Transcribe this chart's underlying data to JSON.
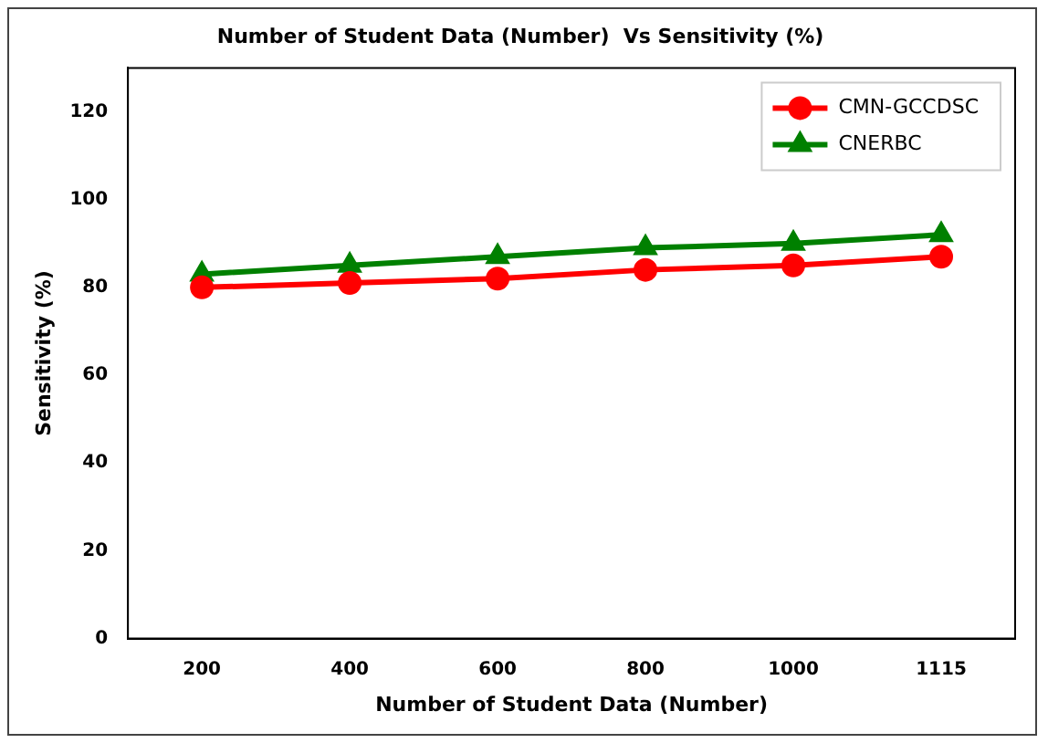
{
  "chart_data": {
    "type": "line",
    "title": "Number of Student Data (Number)  Vs Sensitivity (%)",
    "xlabel": "Number of Student Data (Number)",
    "ylabel": "Sensitivity (%)",
    "categories": [
      "200",
      "400",
      "600",
      "800",
      "1000",
      "1115"
    ],
    "series": [
      {
        "name": "CMN-GCCDSC",
        "color": "#ff0000",
        "marker": "circle",
        "values": [
          80,
          81,
          82,
          84,
          85,
          87
        ]
      },
      {
        "name": "CNERBC",
        "color": "#008000",
        "marker": "triangle",
        "values": [
          83,
          85,
          87,
          89,
          90,
          92
        ]
      }
    ],
    "ylim": [
      0,
      130
    ],
    "yticks": [
      0,
      20,
      40,
      60,
      80,
      100,
      120
    ],
    "grid": false,
    "legend": "top right",
    "line_style": "solid"
  }
}
